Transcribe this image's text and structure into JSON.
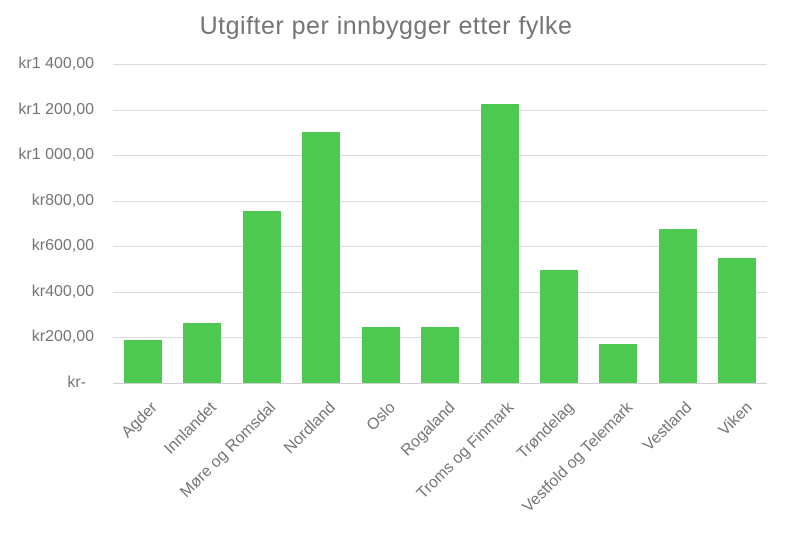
{
  "chart_data": {
    "type": "bar",
    "title": "Utgifter per innbygger etter fylke",
    "categories": [
      "Agder",
      "Innlandet",
      "Møre og Romsdal",
      "Nordland",
      "Oslo",
      "Rogaland",
      "Troms og Finmark",
      "Trøndelag",
      "Vestfold og Telemark",
      "Vestland",
      "Viken"
    ],
    "values": [
      190,
      265,
      755,
      1100,
      245,
      245,
      1225,
      495,
      170,
      675,
      550
    ],
    "xlabel": "",
    "ylabel": "",
    "ylim": [
      0,
      1400
    ],
    "grid": true,
    "legend_position": "none",
    "currency_prefix": "kr",
    "y_ticks": [
      {
        "value": 1400,
        "label": "kr1 400,00"
      },
      {
        "value": 1200,
        "label": "kr1 200,00"
      },
      {
        "value": 1000,
        "label": "kr1 000,00"
      },
      {
        "value": 800,
        "label": "kr800,00"
      },
      {
        "value": 600,
        "label": "kr600,00"
      },
      {
        "value": 400,
        "label": "kr400,00"
      },
      {
        "value": 200,
        "label": "kr200,00"
      },
      {
        "value": 0,
        "label": "kr-"
      }
    ],
    "colors": {
      "bar": "#4dc850",
      "text": "#757575",
      "gridline": "#dcdcdc",
      "background": "#ffffff"
    }
  }
}
